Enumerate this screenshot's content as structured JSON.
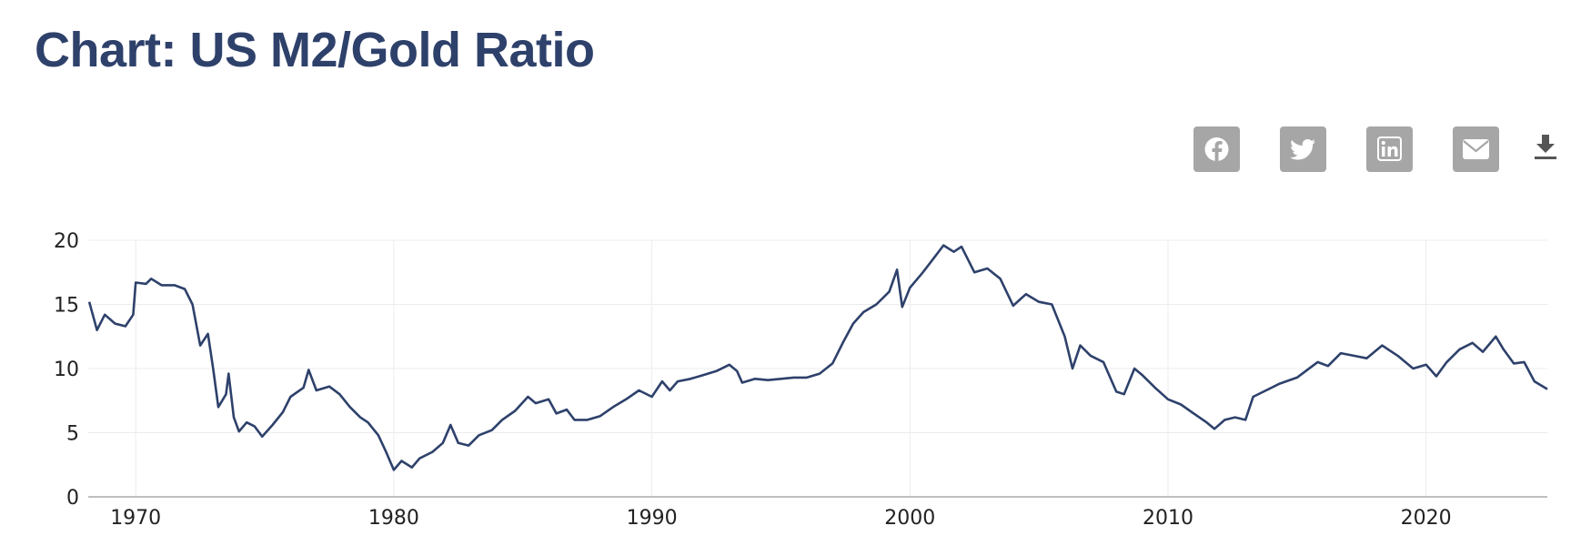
{
  "chart_data": {
    "type": "line",
    "title": "Chart: US M2/Gold Ratio",
    "x": [
      1968.2,
      1968.5,
      1968.8,
      1969.2,
      1969.6,
      1969.9,
      1970.0,
      1970.4,
      1970.6,
      1971.0,
      1971.5,
      1971.9,
      1972.2,
      1972.5,
      1972.8,
      1973.0,
      1973.2,
      1973.5,
      1973.6,
      1973.8,
      1974.0,
      1974.3,
      1974.6,
      1974.9,
      1975.3,
      1975.7,
      1976.0,
      1976.5,
      1976.7,
      1977.0,
      1977.5,
      1977.9,
      1978.3,
      1978.7,
      1979.0,
      1979.4,
      1979.7,
      1980.0,
      1980.3,
      1980.7,
      1981.0,
      1981.5,
      1981.9,
      1982.2,
      1982.5,
      1982.9,
      1983.3,
      1983.8,
      1984.2,
      1984.7,
      1985.2,
      1985.5,
      1986.0,
      1986.3,
      1986.7,
      1987.0,
      1987.5,
      1988.0,
      1988.5,
      1989.0,
      1989.5,
      1990.0,
      1990.4,
      1990.7,
      1991.0,
      1991.5,
      1992.0,
      1992.5,
      1993.0,
      1993.3,
      1993.5,
      1994.0,
      1994.5,
      1995.0,
      1995.5,
      1996.0,
      1996.5,
      1997.0,
      1997.4,
      1997.8,
      1998.2,
      1998.7,
      1999.2,
      1999.5,
      1999.7,
      2000.0,
      2000.5,
      2001.0,
      2001.3,
      2001.7,
      2002.0,
      2002.5,
      2003.0,
      2003.5,
      2004.0,
      2004.5,
      2005.0,
      2005.5,
      2006.0,
      2006.3,
      2006.6,
      2007.0,
      2007.5,
      2008.0,
      2008.3,
      2008.7,
      2009.0,
      2009.5,
      2010.0,
      2010.5,
      2011.0,
      2011.5,
      2011.8,
      2012.2,
      2012.6,
      2013.0,
      2013.3,
      2013.8,
      2014.3,
      2015.0,
      2015.8,
      2016.2,
      2016.7,
      2017.2,
      2017.7,
      2018.3,
      2018.9,
      2019.5,
      2020.0,
      2020.4,
      2020.8,
      2021.3,
      2021.8,
      2022.2,
      2022.7,
      2023.0,
      2023.4,
      2023.8,
      2024.2,
      2024.7
    ],
    "values": [
      15.2,
      13.0,
      14.2,
      13.5,
      13.3,
      14.2,
      16.7,
      16.6,
      17.0,
      16.5,
      16.5,
      16.2,
      15.0,
      11.8,
      12.7,
      10.0,
      7.0,
      8.0,
      9.6,
      6.2,
      5.1,
      5.8,
      5.5,
      4.7,
      5.6,
      6.6,
      7.8,
      8.5,
      9.9,
      8.3,
      8.6,
      8.0,
      7.0,
      6.2,
      5.8,
      4.8,
      3.5,
      2.1,
      2.8,
      2.3,
      3.0,
      3.5,
      4.2,
      5.6,
      4.2,
      4.0,
      4.8,
      5.2,
      6.0,
      6.7,
      7.8,
      7.3,
      7.6,
      6.5,
      6.8,
      6.0,
      6.0,
      6.3,
      7.0,
      7.6,
      8.3,
      7.8,
      9.0,
      8.3,
      9.0,
      9.2,
      9.5,
      9.8,
      10.3,
      9.8,
      8.9,
      9.2,
      9.1,
      9.2,
      9.3,
      9.3,
      9.6,
      10.4,
      12.0,
      13.5,
      14.4,
      15.0,
      16.0,
      17.7,
      14.8,
      16.3,
      17.5,
      18.8,
      19.6,
      19.1,
      19.5,
      17.5,
      17.8,
      17.0,
      14.9,
      15.8,
      15.2,
      15.0,
      12.5,
      10.0,
      11.8,
      11.0,
      10.5,
      8.2,
      8.0,
      10.0,
      9.5,
      8.5,
      7.6,
      7.2,
      6.5,
      5.8,
      5.3,
      6.0,
      6.2,
      6.0,
      7.8,
      8.3,
      8.8,
      9.3,
      10.5,
      10.2,
      11.2,
      11.0,
      10.8,
      11.8,
      11.0,
      10.0,
      10.3,
      9.4,
      10.5,
      11.5,
      12.0,
      11.3,
      12.5,
      11.5,
      10.4,
      10.5,
      9.0,
      8.4
    ],
    "color": "#2e416b",
    "xlim": [
      1968.16,
      2024.7
    ],
    "xticks": [
      1970,
      1980,
      1990,
      2000,
      2010,
      2020
    ],
    "ylim": [
      0,
      20
    ],
    "yticks": [
      0,
      5,
      10,
      15,
      20
    ],
    "grid": true
  }
}
